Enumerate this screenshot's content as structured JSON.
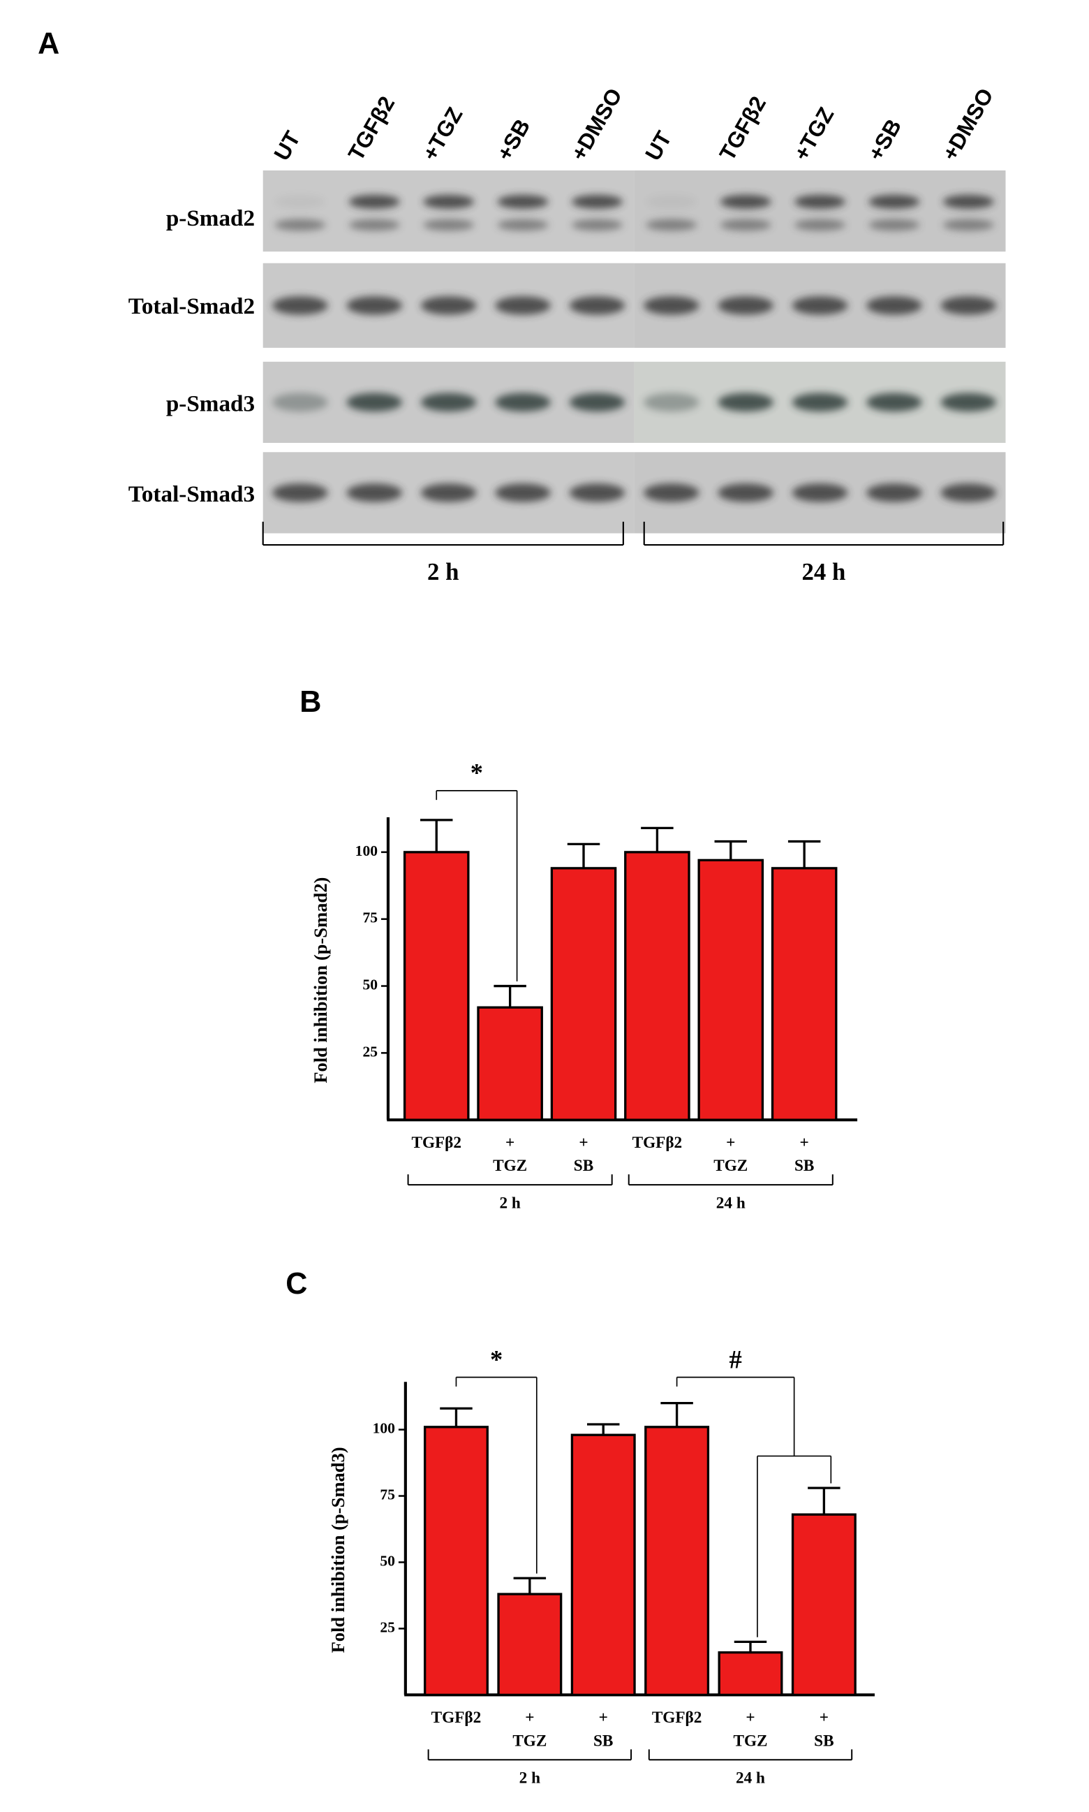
{
  "panels": [
    "A",
    "B",
    "C"
  ],
  "blot": {
    "lanes": [
      "UT",
      "TGFβ2",
      "+TGZ",
      "+SB",
      "+DMSO",
      "UT",
      "TGFβ2",
      "+TGZ",
      "+SB",
      "+DMSO"
    ],
    "rows": [
      "p-Smad2",
      "Total-Smad2",
      "p-Smad3",
      "Total-Smad3"
    ],
    "groups": [
      "2 h",
      "24 h"
    ]
  },
  "chart_data": [
    {
      "type": "bar",
      "y_label": "Fold inhibition (p-Smad2)",
      "categories": [
        [
          "TGFβ2"
        ],
        [
          "+",
          "TGZ"
        ],
        [
          "+",
          "SB"
        ],
        [
          "TGFβ2"
        ],
        [
          "+",
          "TGZ"
        ],
        [
          "+",
          "SB"
        ]
      ],
      "groups": [
        "2 h",
        "24 h"
      ],
      "values": [
        100,
        42,
        94,
        100,
        97,
        94
      ],
      "errors": [
        12,
        8,
        9,
        9,
        7,
        10
      ],
      "color": "#ed1c1c",
      "ylim": [
        0,
        113
      ],
      "yticks": [
        25,
        50,
        75,
        100
      ],
      "annotations": [
        "*"
      ]
    },
    {
      "type": "bar",
      "y_label": "Fold inhibition (p-Smad3)",
      "categories": [
        [
          "TGFβ2"
        ],
        [
          "+",
          "TGZ"
        ],
        [
          "+",
          "SB"
        ],
        [
          "TGFβ2"
        ],
        [
          "+",
          "TGZ"
        ],
        [
          "+",
          "SB"
        ]
      ],
      "groups": [
        "2 h",
        "24 h"
      ],
      "values": [
        101,
        38,
        98,
        101,
        16,
        68
      ],
      "errors": [
        7,
        6,
        4,
        9,
        4,
        10
      ],
      "color": "#ed1c1c",
      "ylim": [
        0,
        118
      ],
      "yticks": [
        25,
        50,
        75,
        100
      ],
      "annotations": [
        "*",
        "#"
      ]
    }
  ]
}
